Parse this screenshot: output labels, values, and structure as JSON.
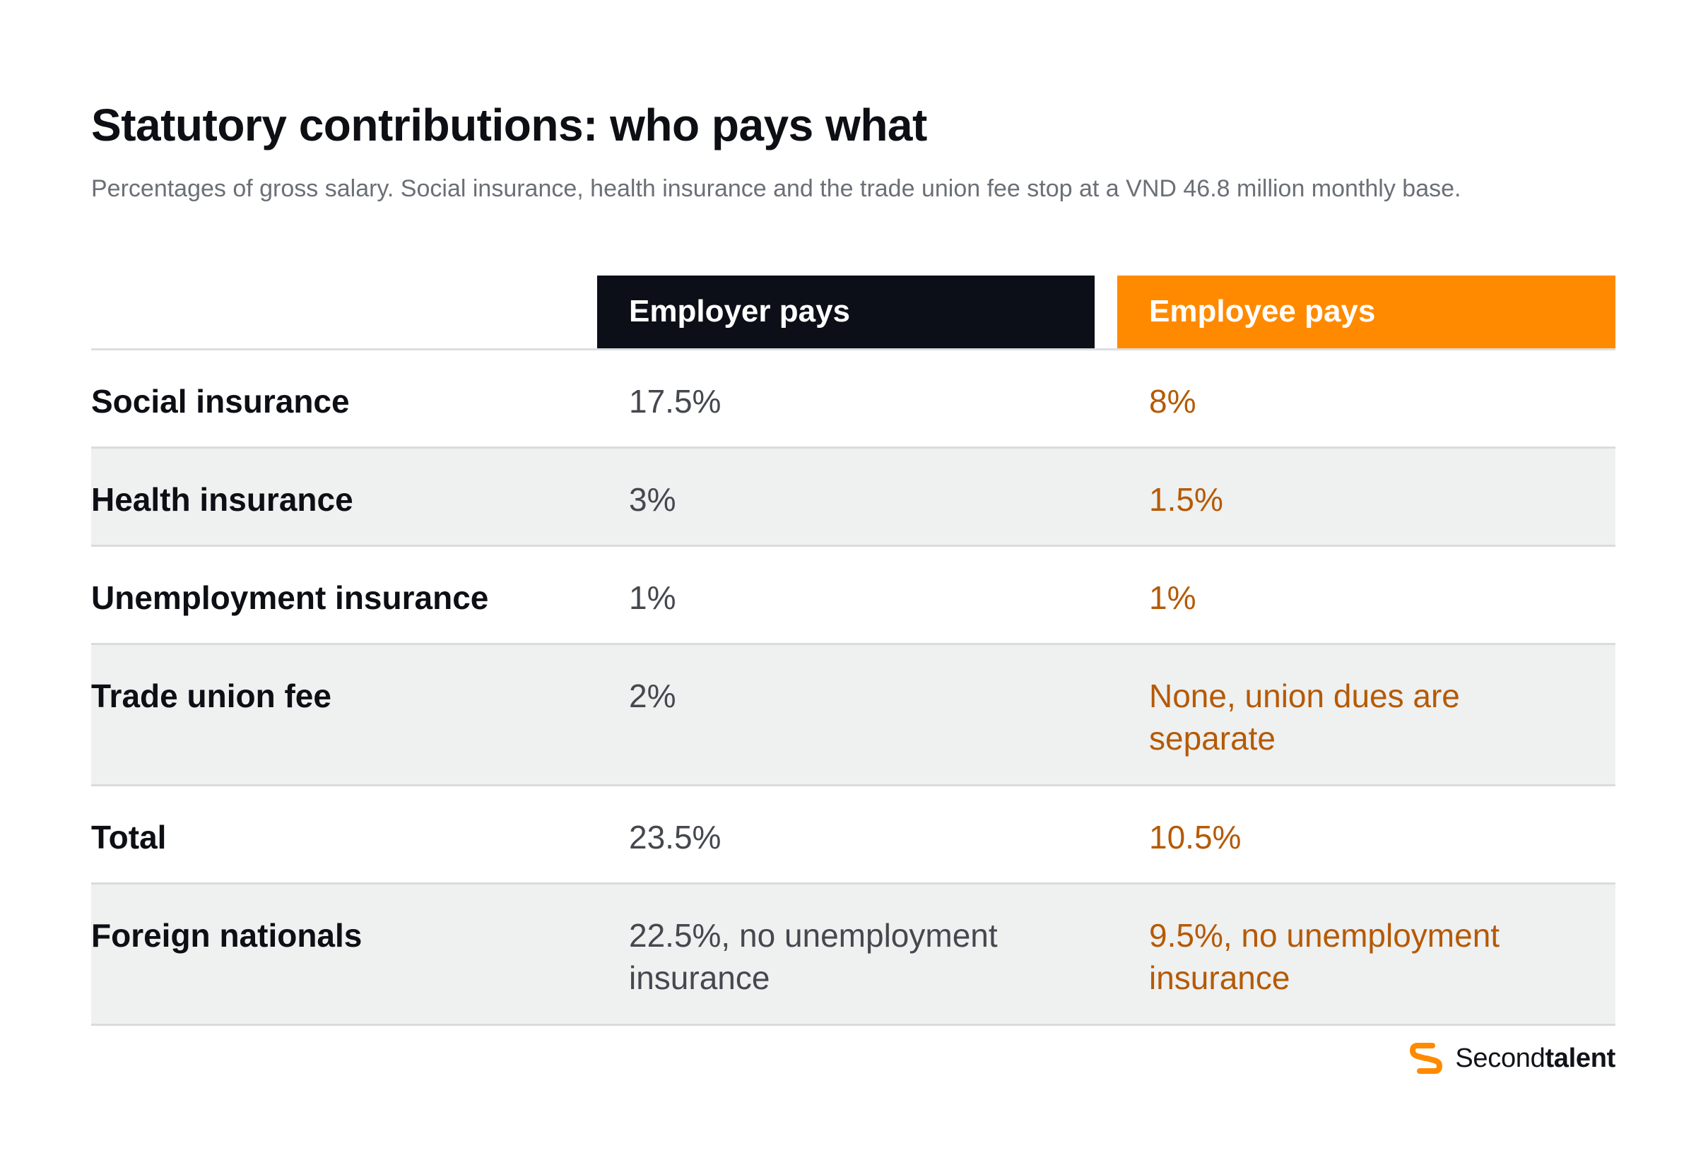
{
  "title": "Statutory contributions: who pays what",
  "subtitle": "Percentages of gross salary. Social insurance, health insurance and the trade union fee stop at a VND 46.8 million monthly base.",
  "colors": {
    "employer_header": "#0c0f17",
    "employee_header": "#ff8a00",
    "employee_text": "#b55a05",
    "employer_text": "#45484e",
    "row_shade": "#eff0f0"
  },
  "chart_data": {
    "type": "table",
    "columns": [
      "",
      "Employer pays",
      "Employee pays"
    ],
    "rows": [
      {
        "label": "Social insurance",
        "employer": "17.5%",
        "employee": "8%"
      },
      {
        "label": "Health insurance",
        "employer": "3%",
        "employee": "1.5%"
      },
      {
        "label": "Unemployment insurance",
        "employer": "1%",
        "employee": "1%"
      },
      {
        "label": "Trade union fee",
        "employer": "2%",
        "employee": "None, union dues are separate"
      },
      {
        "label": "Total",
        "employer": "23.5%",
        "employee": "10.5%"
      },
      {
        "label": "Foreign nationals",
        "employer": "22.5%, no unemployment insurance",
        "employee": "9.5%, no unemployment insurance"
      }
    ]
  },
  "brand": {
    "name_regular": "Second",
    "name_bold": "talent",
    "icon": "secondtalent-logo-icon"
  }
}
